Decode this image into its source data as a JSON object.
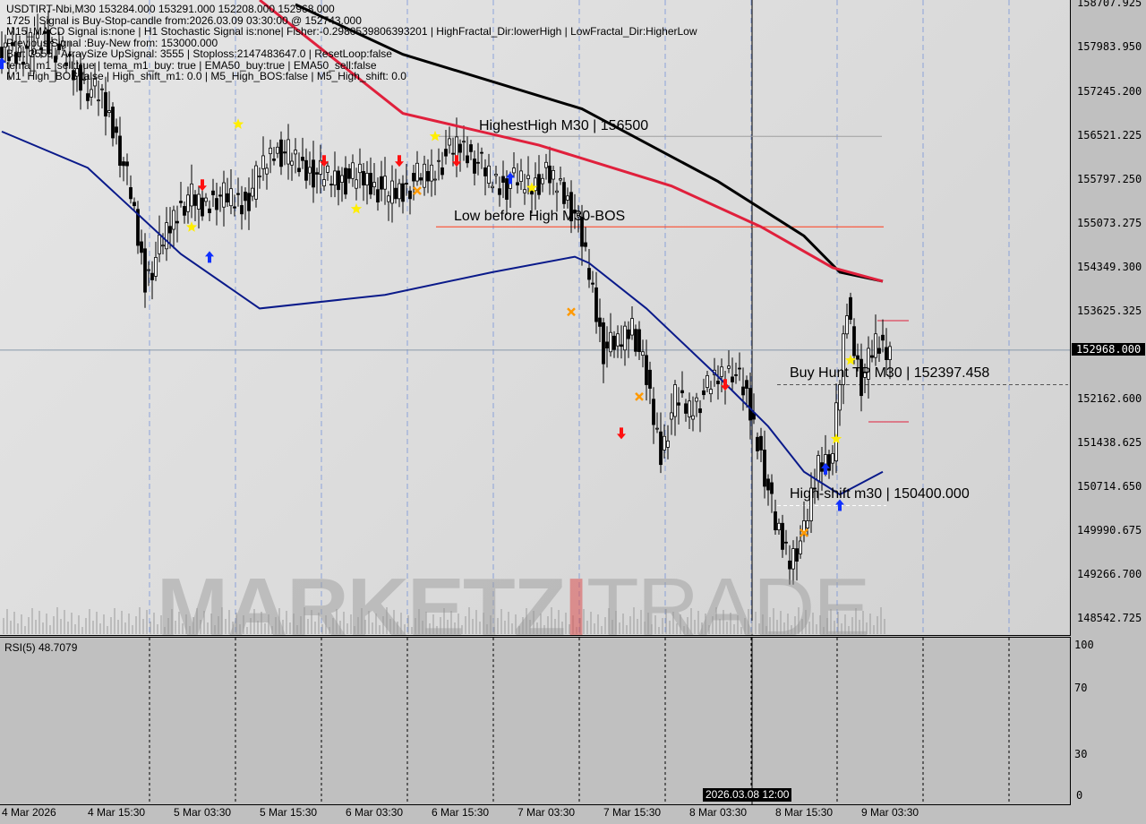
{
  "header": {
    "lines": [
      "USDTIRT-Nbi,M30  153284.000 153291.000 152208.000 152968.000",
      "1725 | Signal is Buy-Stop-candle from:2026.03.09 03:30:00 @ 152743.000",
      "M15_MACD Signal is:none | H1 Stochastic Signal is:none| Fisher:-0.2980539806393201 | HighFractal_Dir:lowerHigh | LowFractal_Dir:HigherLow",
      "Previous Signal :Buy-New from: 153000.000",
      "Bar: 3555 | ArraySize UpSignal: 3555 | Stoploss:2147483647.0 | ResetLoop:false",
      "tema_m1_sell:true | tema_m1_buy: true | EMA50_buy:true | EMA50_sell:false",
      "M1_High_BOS:false | High_shift_m1: 0.0 | M5_High_BOS:false | M5_High_shift: 0.0"
    ]
  },
  "annotations": {
    "highest_high": "HighestHigh   M30 | 156500",
    "low_before_high": "Low before High   M30-BOS",
    "buy_hunt_tp": "Buy Hunt TP M30 | 152397.458",
    "high_shift": "High-shift m30 | 150400.000"
  },
  "watermark": {
    "part1": "MARKETZ",
    "part2": "I",
    "part3": "TRADE"
  },
  "current_price_label": "152968.000",
  "crosshair_time_label": "2026.03.08 12:00",
  "rsi": {
    "label": "RSI(5) 48.7079",
    "levels": [
      "100",
      "70",
      "30",
      "0"
    ]
  },
  "chart_data": {
    "type": "candlestick",
    "symbol": "USDTIRT-Nbi",
    "timeframe": "M30",
    "ohlc_last": {
      "open": 153284.0,
      "high": 153291.0,
      "low": 152208.0,
      "close": 152968.0
    },
    "ylim": [
      148542.725,
      158707.925
    ],
    "y_ticks": [
      "158707.925",
      "157983.950",
      "157245.200",
      "156521.225",
      "155797.250",
      "155073.275",
      "154349.300",
      "153625.325",
      "152162.600",
      "151438.625",
      "150714.650",
      "149990.675",
      "149266.700",
      "148542.725"
    ],
    "x_ticks": [
      "4 Mar 2026",
      "4 Mar 15:30",
      "5 Mar 03:30",
      "5 Mar 15:30",
      "6 Mar 03:30",
      "6 Mar 15:30",
      "7 Mar 03:30",
      "7 Mar 15:30",
      "8 Mar 03:30",
      "8 Mar 15:30",
      "9 Mar 03:30"
    ],
    "close_path_start": "4 Mar 03:30",
    "close_path_step_hours": 2,
    "close_path": [
      157854,
      157884,
      157974,
      158078,
      157929,
      157554,
      157329,
      157104,
      156504,
      155530,
      154106,
      154631,
      155155,
      155530,
      155305,
      155530,
      155455,
      155380,
      155905,
      156280,
      156205,
      155980,
      155875,
      155815,
      155785,
      155860,
      155680,
      155575,
      155605,
      155815,
      155905,
      156175,
      156355,
      156130,
      155830,
      155680,
      155755,
      155725,
      155830,
      155680,
      155230,
      154256,
      152982,
      153057,
      153431,
      152457,
      151258,
      152157,
      152007,
      152232,
      152532,
      152682,
      152157,
      151258,
      150058,
      149534,
      149909,
      151108,
      151258,
      153656,
      152457,
      153057,
      152968
    ],
    "series": [
      {
        "color": "#000000",
        "points": [
          [
            "5 Mar 20:30",
            158678
          ],
          [
            "6 Mar 11:30",
            157854
          ],
          [
            "7 Mar 12:30",
            156954
          ],
          [
            "8 Mar 07:30",
            155755
          ],
          [
            "8 Mar 19:30",
            154855
          ],
          [
            "9 Mar 00:30",
            154256
          ],
          [
            "9 Mar 06:30",
            154106
          ]
        ]
      },
      {
        "color": "#e0203c",
        "points": [
          [
            "5 Mar 15:30",
            158753
          ],
          [
            "6 Mar 11:30",
            156879
          ],
          [
            "7 Mar 06:30",
            156355
          ],
          [
            "8 Mar 01:00",
            155680
          ],
          [
            "8 Mar 13:30",
            155005
          ],
          [
            "8 Mar 23:30",
            154331
          ],
          [
            "9 Mar 06:30",
            154106
          ]
        ]
      },
      {
        "color": "#0a1a8a",
        "points": [
          [
            "4 Mar 03:30",
            156579
          ],
          [
            "4 Mar 15:30",
            155980
          ],
          [
            "5 Mar 04:30",
            154556
          ],
          [
            "5 Mar 15:30",
            153656
          ],
          [
            "6 Mar 09:00",
            153881
          ],
          [
            "7 Mar 00:00",
            154256
          ],
          [
            "7 Mar 11:30",
            154511
          ],
          [
            "7 Mar 13:30",
            154406
          ],
          [
            "7 Mar 21:30",
            153656
          ],
          [
            "8 Mar 07:30",
            152532
          ],
          [
            "8 Mar 14:30",
            151708
          ],
          [
            "8 Mar 19:30",
            150958
          ],
          [
            "9 Mar 00:30",
            150583
          ],
          [
            "9 Mar 06:30",
            150958
          ]
        ]
      }
    ],
    "levels": [
      {
        "price": 156500,
        "color": "#a0a0a0"
      },
      {
        "price": 155005,
        "color": "#ff3a1a"
      },
      {
        "price": 152397.458,
        "color": "#555555",
        "dashed": true
      },
      {
        "price": 150400,
        "color": "#ffffff",
        "dashed": true
      }
    ],
    "markers": [
      {
        "t": "4 Mar 03:30",
        "price": 157700,
        "kind": "up-arrow",
        "color": "#1030ff"
      },
      {
        "t": "5 Mar 06:00",
        "price": 155000,
        "kind": "star",
        "color": "#ffee00"
      },
      {
        "t": "5 Mar 08:30",
        "price": 154500,
        "kind": "up-arrow",
        "color": "#1030ff"
      },
      {
        "t": "5 Mar 07:30",
        "price": 155700,
        "kind": "down-arrow",
        "color": "#ff1010"
      },
      {
        "t": "5 Mar 12:30",
        "price": 156700,
        "kind": "star",
        "color": "#ffee00"
      },
      {
        "t": "6 Mar 00:30",
        "price": 156100,
        "kind": "down-arrow",
        "color": "#ff1010"
      },
      {
        "t": "6 Mar 05:00",
        "price": 155300,
        "kind": "star",
        "color": "#ffee00"
      },
      {
        "t": "6 Mar 11:00",
        "price": 156100,
        "kind": "down-arrow",
        "color": "#ff1010"
      },
      {
        "t": "6 Mar 13:30",
        "price": 155600,
        "kind": "cross",
        "color": "#ff9900"
      },
      {
        "t": "6 Mar 16:00",
        "price": 156500,
        "kind": "star",
        "color": "#ffee00"
      },
      {
        "t": "6 Mar 19:00",
        "price": 156100,
        "kind": "down-arrow",
        "color": "#ff1010"
      },
      {
        "t": "7 Mar 02:30",
        "price": 155800,
        "kind": "up-arrow",
        "color": "#1030ff"
      },
      {
        "t": "7 Mar 05:30",
        "price": 155650,
        "kind": "star",
        "color": "#ffee00"
      },
      {
        "t": "7 Mar 11:00",
        "price": 153600,
        "kind": "cross",
        "color": "#ff9900"
      },
      {
        "t": "7 Mar 18:00",
        "price": 151600,
        "kind": "down-arrow",
        "color": "#ff1010"
      },
      {
        "t": "7 Mar 20:30",
        "price": 152200,
        "kind": "cross",
        "color": "#ff9900"
      },
      {
        "t": "8 Mar 08:30",
        "price": 152400,
        "kind": "down-arrow",
        "color": "#ff1010"
      },
      {
        "t": "8 Mar 19:30",
        "price": 149950,
        "kind": "cross",
        "color": "#ff9900"
      },
      {
        "t": "8 Mar 22:30",
        "price": 151000,
        "kind": "up-arrow",
        "color": "#1030ff"
      },
      {
        "t": "9 Mar 00:00",
        "price": 151500,
        "kind": "star",
        "color": "#ffee00"
      },
      {
        "t": "9 Mar 00:30",
        "price": 150400,
        "kind": "up-arrow",
        "color": "#1030ff"
      },
      {
        "t": "9 Mar 02:00",
        "price": 152800,
        "kind": "star",
        "color": "#ffee00"
      }
    ]
  }
}
